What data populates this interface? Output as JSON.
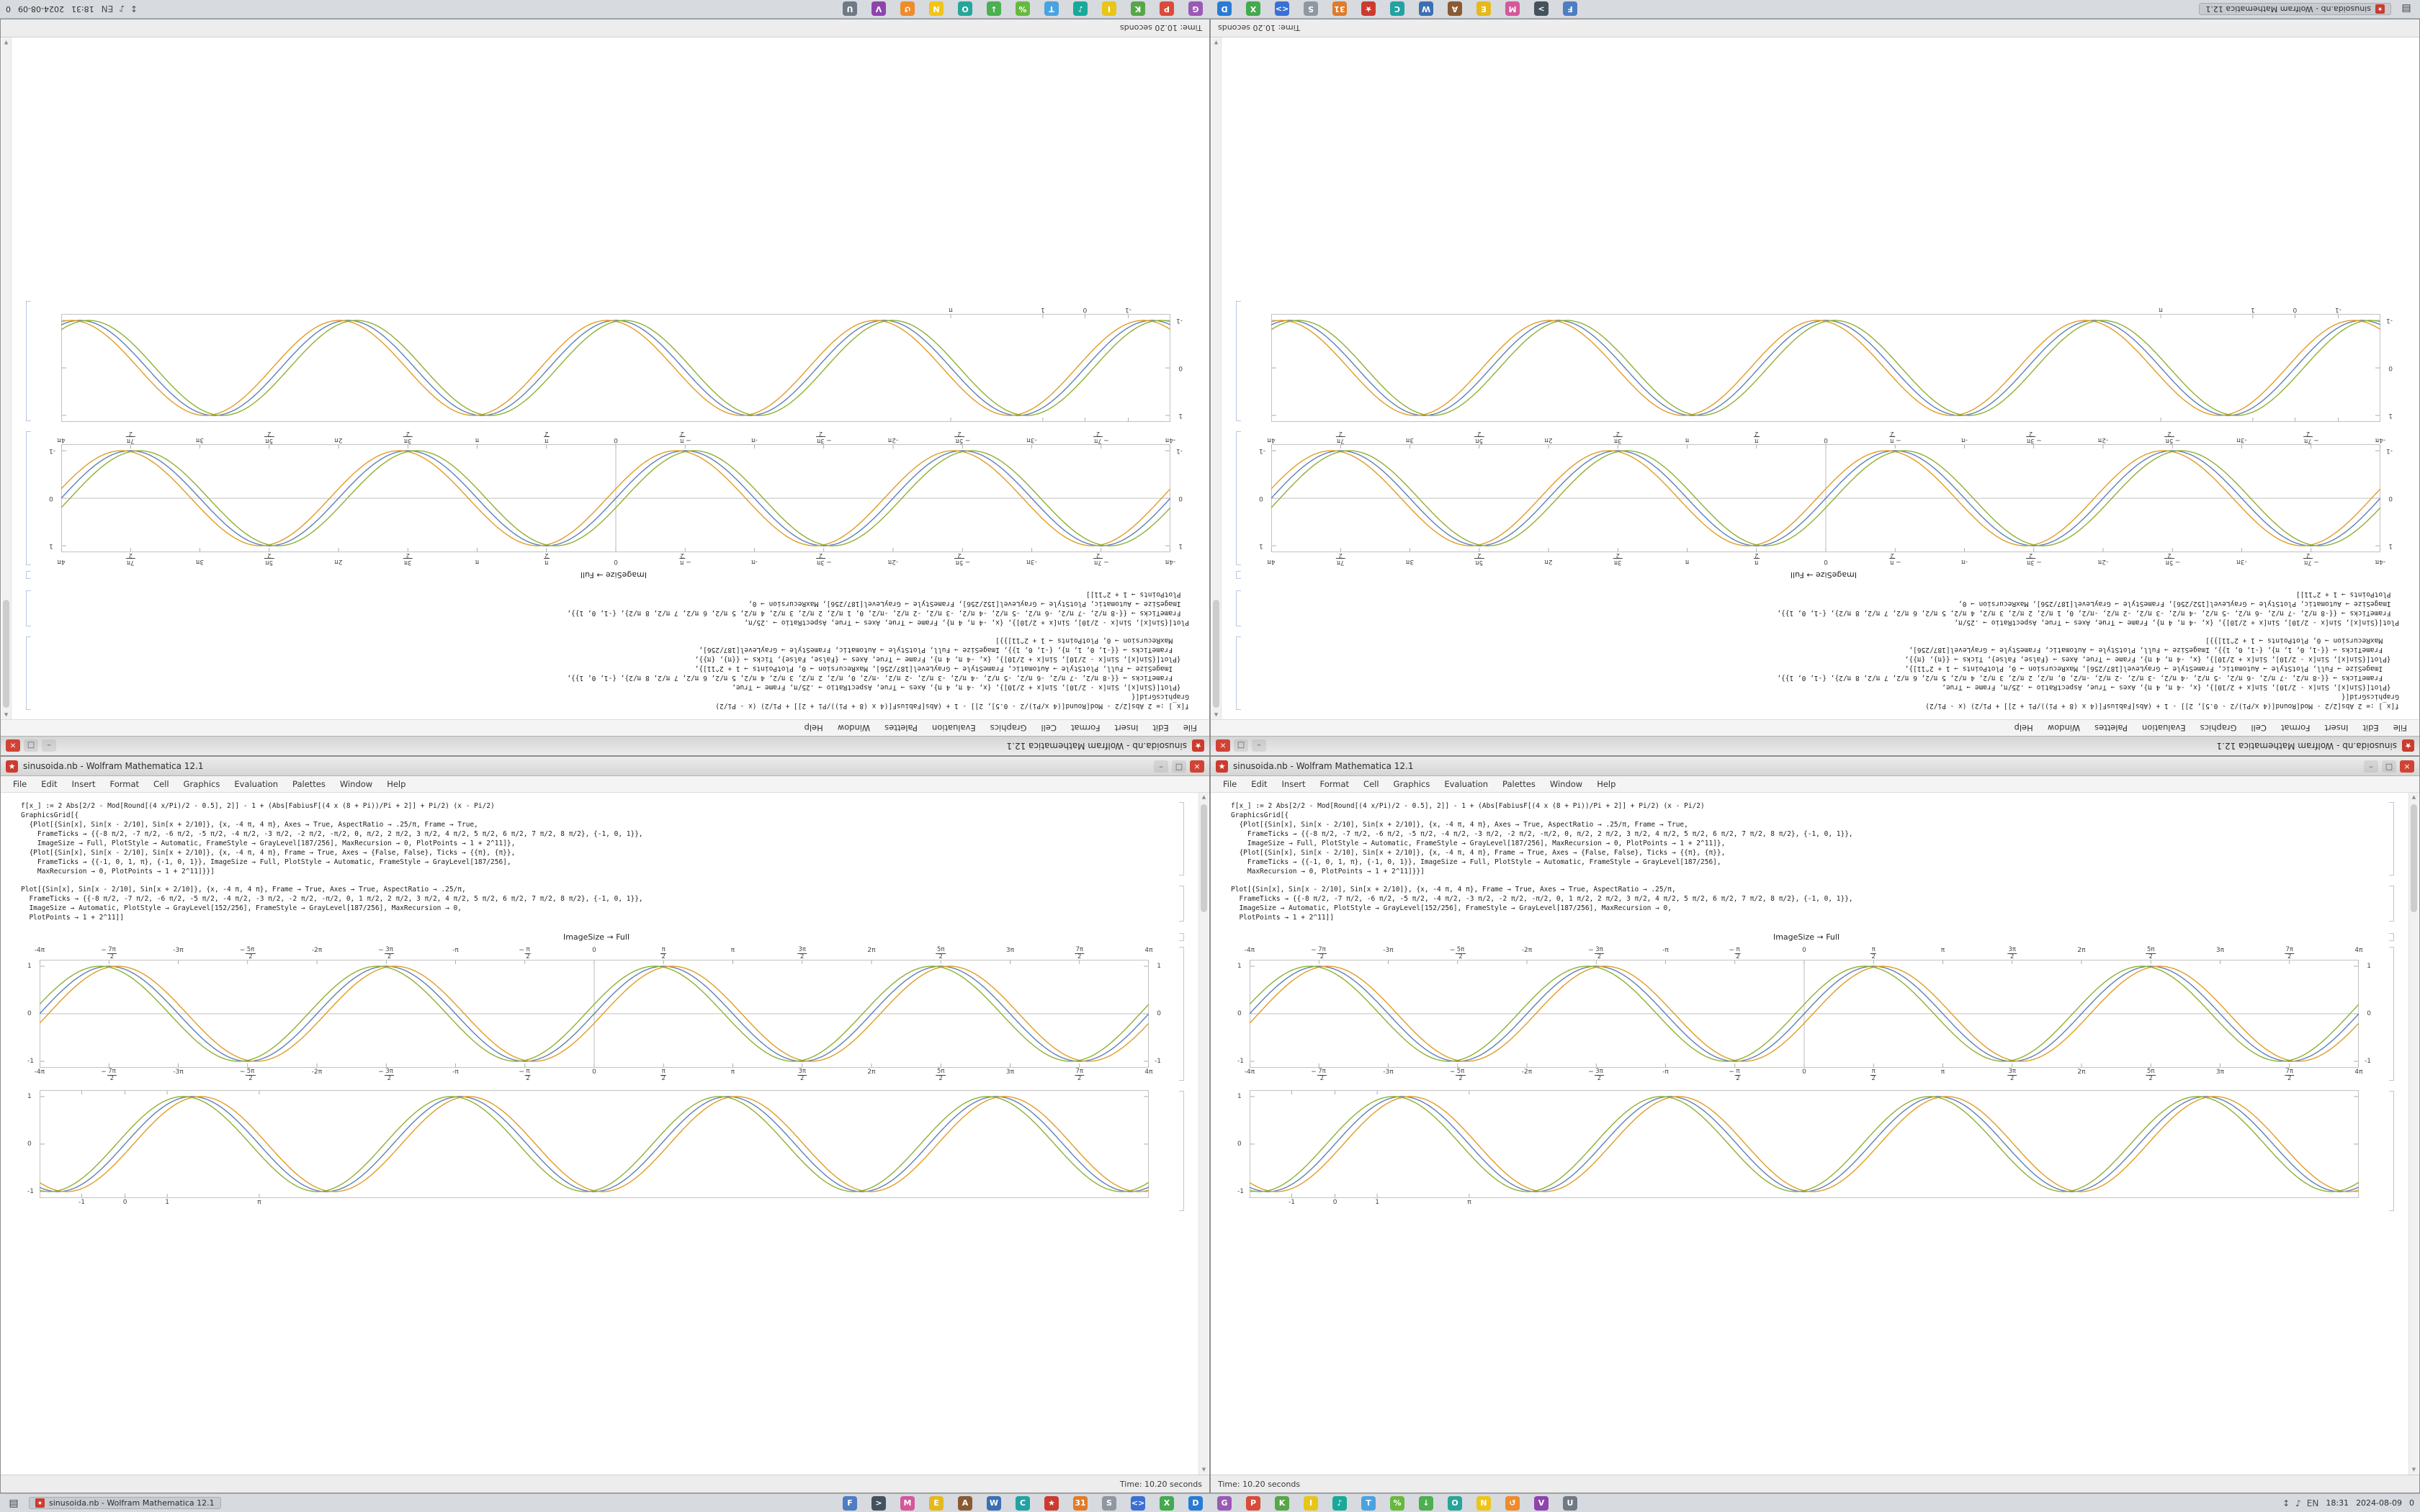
{
  "desktop": {
    "bands": [
      {
        "rotated": true,
        "windows": [
          {
            "status_align": "right"
          },
          {
            "status_align": "left"
          }
        ]
      },
      {
        "rotated": false,
        "windows": [
          {
            "status_align": "right"
          },
          {
            "status_align": "left"
          }
        ]
      }
    ]
  },
  "window": {
    "title": "sinusoida.nb - Wolfram Mathematica 12.1",
    "spikey_glyph": "★",
    "controls": {
      "minimize": "–",
      "maximize": "□",
      "close": "×"
    },
    "menus": [
      "File",
      "Edit",
      "Insert",
      "Format",
      "Cell",
      "Graphics",
      "Evaluation",
      "Palettes",
      "Window",
      "Help"
    ],
    "cells": {
      "code1": [
        "f[x_] := 2 Abs[2/2 - Mod[Round[(4 x/Pi)/2 - 0.5], 2]] - 1 + (Abs[FabiusF[(4 x (8 + Pi))/Pi + 2]] + Pi/2) (x - Pi/2)",
        "GraphicsGrid[{",
        "  {Plot[{Sin[x], Sin[x - 2/10], Sin[x + 2/10]}, {x, -4 π, 4 π}, Axes → True, AspectRatio → .25/π, Frame → True,",
        "    FrameTicks → {{-8 π/2, -7 π/2, -6 π/2, -5 π/2, -4 π/2, -3 π/2, -2 π/2, -π/2, 0, π/2, 2 π/2, 3 π/2, 4 π/2, 5 π/2, 6 π/2, 7 π/2, 8 π/2}, {-1, 0, 1}},",
        "    ImageSize → Full, PlotStyle → Automatic, FrameStyle → GrayLevel[187/256], MaxRecursion → 0, PlotPoints → 1 + 2^11]},",
        "  {Plot[{Sin[x], Sin[x - 2/10], Sin[x + 2/10]}, {x, -4 π, 4 π}, Frame → True, Axes → {False, False}, Ticks → {{π}, {π}},",
        "    FrameTicks → {{-1, 0, 1, π}, {-1, 0, 1}}, ImageSize → Full, PlotStyle → Automatic, FrameStyle → GrayLevel[187/256],",
        "    MaxRecursion → 0, PlotPoints → 1 + 2^11]}}]"
      ],
      "code2": [
        "Plot[{Sin[x], Sin[x - 2/10], Sin[x + 2/10]}, {x, -4 π, 4 π}, Frame → True, Axes → True, AspectRatio → .25/π,",
        "  FrameTicks → {{-8 π/2, -7 π/2, -6 π/2, -5 π/2, -4 π/2, -3 π/2, -2 π/2, -π/2, 0, 1 π/2, 2 π/2, 3 π/2, 4 π/2, 5 π/2, 6 π/2, 7 π/2, 8 π/2}, {-1, 0, 1}},",
        "  ImageSize → Automatic, PlotStyle → GrayLevel[152/256], FrameStyle → GrayLevel[187/256], MaxRecursion → 0,",
        "  PlotPoints → 1 + 2^11]]"
      ],
      "caption": "ImageSize → Full"
    },
    "status": "Time: 10.20 seconds"
  },
  "taskbar": {
    "menu_button_glyph": "▤",
    "window_button": {
      "label": "sinusoida.nb - Wolfram Mathematica 12.1"
    },
    "launchers": [
      {
        "name": "files",
        "color": "#4f7dc2",
        "glyph": "F"
      },
      {
        "name": "terminal",
        "color": "#44525e",
        "glyph": ">"
      },
      {
        "name": "mail",
        "color": "#d4589a",
        "glyph": "M"
      },
      {
        "name": "text-editor",
        "color": "#e5b91e",
        "glyph": "E"
      },
      {
        "name": "archive-manager",
        "color": "#8a5a33",
        "glyph": "A"
      },
      {
        "name": "browser",
        "color": "#3b6fb3",
        "glyph": "W"
      },
      {
        "name": "messenger",
        "color": "#22a2a2",
        "glyph": "C"
      },
      {
        "name": "mathematica",
        "color": "#cc3b2f",
        "glyph": "★"
      },
      {
        "name": "calendar",
        "color": "#e07b2a",
        "glyph": "31"
      },
      {
        "name": "settings",
        "color": "#9097a0",
        "glyph": "S"
      },
      {
        "name": "code-editor",
        "color": "#3b6fd4",
        "glyph": "<>"
      },
      {
        "name": "spreadsheet",
        "color": "#44a94f",
        "glyph": "X"
      },
      {
        "name": "word-processor",
        "color": "#2b7bd4",
        "glyph": "D"
      },
      {
        "name": "graphics-editor",
        "color": "#9b59b6",
        "glyph": "G"
      },
      {
        "name": "pdf-viewer",
        "color": "#d94b3b",
        "glyph": "P"
      },
      {
        "name": "package-manager",
        "color": "#57a64a",
        "glyph": "K"
      },
      {
        "name": "image-viewer",
        "color": "#e8c51a",
        "glyph": "I"
      },
      {
        "name": "music-player",
        "color": "#18a999",
        "glyph": "♪"
      },
      {
        "name": "telegram",
        "color": "#4aa3df",
        "glyph": "T"
      },
      {
        "name": "system-monitor",
        "color": "#67b93e",
        "glyph": "%"
      },
      {
        "name": "software-center",
        "color": "#4caf50",
        "glyph": "↓"
      },
      {
        "name": "screenshot-tool",
        "color": "#26a69a",
        "glyph": "O"
      },
      {
        "name": "notes",
        "color": "#f0c419",
        "glyph": "N"
      },
      {
        "name": "file-sync",
        "color": "#ef8b2c",
        "glyph": "↺"
      },
      {
        "name": "video-player",
        "color": "#8e44ad",
        "glyph": "V"
      },
      {
        "name": "trash",
        "color": "#707a84",
        "glyph": "U"
      }
    ],
    "tray": {
      "icons": [
        {
          "name": "network-icon",
          "glyph": "↕"
        },
        {
          "name": "volume-icon",
          "glyph": "♪"
        },
        {
          "name": "keyboard-layout-indicator",
          "glyph": "EN"
        }
      ],
      "time": "18:31",
      "date": "2024-08-09",
      "workspace": "0"
    }
  },
  "chart_data": [
    {
      "type": "line",
      "title": "sine curves with small phase shifts, framed plot with π/2 ticks",
      "xlabel": "x",
      "ylabel": "",
      "xlim_over_pi": [
        -4,
        4
      ],
      "x_ticks": [
        "-4π",
        "-7π/2",
        "-3π",
        "-5π/2",
        "-2π",
        "-3π/2",
        "-π",
        "-π/2",
        "0",
        "π/2",
        "π",
        "3π/2",
        "2π",
        "5π/2",
        "3π",
        "7π/2",
        "4π"
      ],
      "y_ticks": [
        "1",
        "0",
        "-1"
      ],
      "ylim": [
        -1,
        1
      ],
      "axes": true,
      "frame": true,
      "grid": false,
      "legend": "none",
      "series": [
        {
          "name": "sin(x)",
          "color": "#5e81b5",
          "phase": 0
        },
        {
          "name": "sin(x - 1/5)",
          "color": "#e19c24",
          "phase": -0.2
        },
        {
          "name": "sin(x + 1/5)",
          "color": "#8fb032",
          "phase": 0.2
        }
      ]
    },
    {
      "type": "line",
      "title": "sine curves with small phase shifts, sparse unit ticks",
      "xlabel": "x",
      "ylabel": "",
      "xlim": [
        -2,
        24
      ],
      "x_ticks_pos": [
        {
          "label": "-1",
          "pos": 3.8
        },
        {
          "label": "0",
          "pos": 7.7
        },
        {
          "label": "1",
          "pos": 11.5
        },
        {
          "label": "π",
          "pos": 19.8
        }
      ],
      "y_ticks": [
        "1",
        "0",
        "-1"
      ],
      "ylim": [
        -1,
        1
      ],
      "axes": false,
      "frame": true,
      "grid": false,
      "legend": "none",
      "series": [
        {
          "name": "sin(x)",
          "color": "#5e81b5",
          "phase": 0
        },
        {
          "name": "sin(x - 1/5)",
          "color": "#e19c24",
          "phase": -0.2
        },
        {
          "name": "sin(x + 1/5)",
          "color": "#8fb032",
          "phase": 0.2
        }
      ]
    }
  ]
}
